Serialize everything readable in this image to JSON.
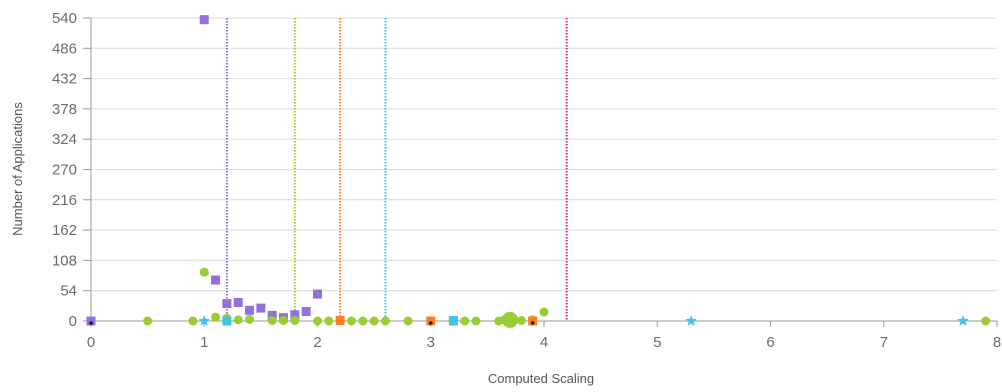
{
  "chart_data": {
    "type": "scatter",
    "title": "",
    "xlabel": "Computed Scaling",
    "ylabel": "Number of Applications",
    "xlim": [
      0,
      8
    ],
    "ylim": [
      0,
      540
    ],
    "x_ticks": [
      "0",
      "1",
      "2",
      "3",
      "4",
      "5",
      "6",
      "7",
      "8"
    ],
    "y_ticks": [
      "0",
      "54",
      "108",
      "162",
      "216",
      "270",
      "324",
      "378",
      "432",
      "486",
      "540"
    ],
    "grid": "horizontal",
    "legend": "none",
    "colors": {
      "purple": "#9370db",
      "green": "#9acd32",
      "orange": "#ff7f24",
      "cyan": "#40c4e8",
      "magenta": "#dc1f8f",
      "dark": "#1a1a1a"
    },
    "reference_lines": [
      {
        "x": 1.2,
        "color": "#9370db"
      },
      {
        "x": 1.8,
        "color": "#9acd32"
      },
      {
        "x": 2.2,
        "color": "#ff7f24"
      },
      {
        "x": 2.6,
        "color": "#40c4e8"
      },
      {
        "x": 4.2,
        "color": "#dc1f8f"
      }
    ],
    "series": [
      {
        "marker": "square",
        "color": "#9370db",
        "points": [
          {
            "x": 0.0,
            "y": 0
          },
          {
            "x": 1.0,
            "y": 537
          },
          {
            "x": 1.1,
            "y": 73
          },
          {
            "x": 1.2,
            "y": 31
          },
          {
            "x": 1.3,
            "y": 33
          },
          {
            "x": 1.4,
            "y": 19
          },
          {
            "x": 1.5,
            "y": 23
          },
          {
            "x": 1.6,
            "y": 10
          },
          {
            "x": 1.7,
            "y": 6
          },
          {
            "x": 1.8,
            "y": 11
          },
          {
            "x": 1.9,
            "y": 17
          },
          {
            "x": 2.0,
            "y": 48
          }
        ]
      },
      {
        "marker": "circle",
        "color": "#9acd32",
        "points": [
          {
            "x": 0.5,
            "y": 0
          },
          {
            "x": 0.9,
            "y": 0
          },
          {
            "x": 1.0,
            "y": 87
          },
          {
            "x": 1.1,
            "y": 7
          },
          {
            "x": 1.2,
            "y": 5
          },
          {
            "x": 1.3,
            "y": 2
          },
          {
            "x": 1.4,
            "y": 3
          },
          {
            "x": 1.6,
            "y": 1
          },
          {
            "x": 1.7,
            "y": 1
          },
          {
            "x": 1.8,
            "y": 1
          },
          {
            "x": 2.0,
            "y": 0
          },
          {
            "x": 2.1,
            "y": 0
          },
          {
            "x": 2.2,
            "y": 1
          },
          {
            "x": 2.3,
            "y": 0
          },
          {
            "x": 2.4,
            "y": 0
          },
          {
            "x": 2.5,
            "y": 0
          },
          {
            "x": 2.6,
            "y": 0
          },
          {
            "x": 2.8,
            "y": 0
          },
          {
            "x": 3.0,
            "y": 0
          },
          {
            "x": 3.2,
            "y": 0
          },
          {
            "x": 3.3,
            "y": 0
          },
          {
            "x": 3.4,
            "y": 0
          },
          {
            "x": 3.6,
            "y": 0
          },
          {
            "x": 3.65,
            "y": 2
          },
          {
            "x": 3.7,
            "y": 2,
            "size": "large"
          },
          {
            "x": 3.8,
            "y": 1
          },
          {
            "x": 3.9,
            "y": 2
          },
          {
            "x": 4.0,
            "y": 16
          },
          {
            "x": 7.9,
            "y": 0
          }
        ]
      },
      {
        "marker": "square",
        "color": "#ff7f24",
        "points": [
          {
            "x": 2.2,
            "y": 1
          },
          {
            "x": 3.0,
            "y": 0
          },
          {
            "x": 3.2,
            "y": 0
          },
          {
            "x": 3.9,
            "y": 0
          }
        ]
      },
      {
        "marker": "square",
        "color": "#40c4e8",
        "points": [
          {
            "x": 1.2,
            "y": 0
          },
          {
            "x": 3.2,
            "y": 1
          }
        ]
      },
      {
        "marker": "star",
        "color": "#40c4e8",
        "points": [
          {
            "x": 1.0,
            "y": 0
          },
          {
            "x": 5.3,
            "y": 0
          },
          {
            "x": 7.7,
            "y": 0
          }
        ]
      },
      {
        "marker": "dot",
        "color": "#1a1a1a",
        "points": [
          {
            "x": 0.0,
            "y": 0
          },
          {
            "x": 3.0,
            "y": 0
          },
          {
            "x": 3.9,
            "y": 0
          }
        ]
      }
    ]
  }
}
